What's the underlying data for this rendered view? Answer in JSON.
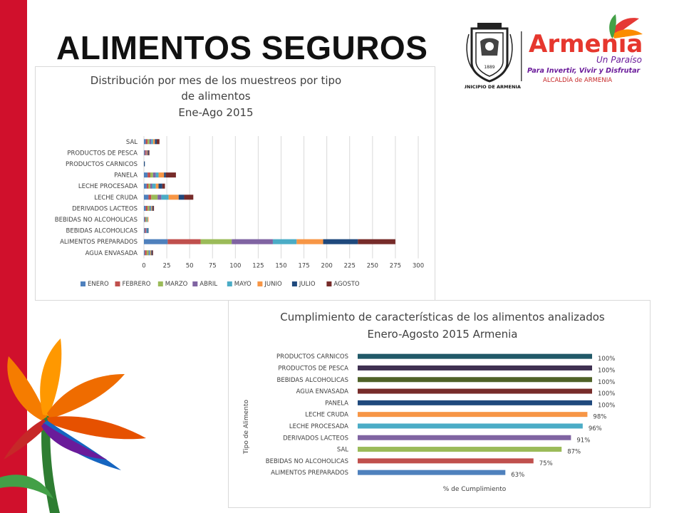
{
  "slide": {
    "title": "ALIMENTOS  SEGUROS",
    "logo": {
      "seal_text": "1889",
      "seal_caption": "MUNICIPIO DE ARMENIA",
      "brand": "Armenia",
      "tagline": "Un Paraíso",
      "slogan": "Para Invertir, Vivir y Disfrutar",
      "org": "ALCALDÍA  de  ARMENIA"
    },
    "colors": {
      "accent_red": "#d0102c"
    }
  },
  "chart_data": [
    {
      "type": "bar",
      "orientation": "horizontal",
      "stacked": true,
      "title": "Distribución por mes de los muestreos por tipo de alimentos",
      "subtitle": "Ene-Ago 2015",
      "categories": [
        "SAL",
        "PRODUCTOS DE PESCA",
        "PRODUCTOS CARNICOS",
        "PANELA",
        "LECHE PROCESADA",
        "LECHE CRUDA",
        "DERIVADOS LACTEOS",
        "BEBIDAS NO ALCOHOLICAS",
        "BEBIDAS ALCOHOLICAS",
        "ALIMENTOS PREPARADOS",
        "AGUA ENVASADA"
      ],
      "series": [
        {
          "name": "ENERO",
          "color": "#4f81bd",
          "values": [
            2,
            1,
            0,
            4,
            3,
            5,
            2,
            1,
            1,
            26,
            1
          ]
        },
        {
          "name": "FEBRERO",
          "color": "#c0504d",
          "values": [
            2,
            1,
            0,
            3,
            2,
            3,
            2,
            1,
            1,
            36,
            2
          ]
        },
        {
          "name": "MARZO",
          "color": "#9bbb59",
          "values": [
            2,
            0,
            0,
            3,
            2,
            7,
            2,
            1,
            0,
            34,
            2
          ]
        },
        {
          "name": "ABRIL",
          "color": "#8064a2",
          "values": [
            2,
            1,
            0,
            3,
            2,
            4,
            1,
            0,
            1,
            45,
            1
          ]
        },
        {
          "name": "MAYO",
          "color": "#4bacc6",
          "values": [
            2,
            0,
            0,
            3,
            4,
            8,
            1,
            1,
            1,
            26,
            1
          ]
        },
        {
          "name": "JUNIO",
          "color": "#f79646",
          "values": [
            2,
            1,
            0,
            6,
            3,
            11,
            1,
            1,
            0,
            29,
            1
          ]
        },
        {
          "name": "JULIO",
          "color": "#1f497d",
          "values": [
            2,
            1,
            1,
            2,
            4,
            6,
            1,
            0,
            1,
            38,
            1
          ]
        },
        {
          "name": "AGOSTO",
          "color": "#772c2a",
          "values": [
            3,
            1,
            0,
            11,
            3,
            10,
            1,
            0,
            0,
            41,
            1
          ]
        }
      ],
      "xlim": [
        0,
        300
      ],
      "xticks": [
        0,
        25,
        50,
        75,
        100,
        125,
        150,
        175,
        200,
        225,
        250,
        275,
        300
      ],
      "legend": "bottom",
      "grid": "vertical"
    },
    {
      "type": "bar",
      "orientation": "horizontal",
      "title": "Cumplimiento de características de los alimentos analizados",
      "subtitle": "Enero-Agosto 2015 Armenia",
      "xlabel": "% de Cumplimiento",
      "ylabel": "Tipo de Alimento",
      "xlim": [
        0,
        100
      ],
      "categories": [
        "PRODUCTOS CARNICOS",
        "PRODUCTOS DE PESCA",
        "BEBIDAS ALCOHOLICAS",
        "AGUA ENVASADA",
        "PANELA",
        "LECHE CRUDA",
        "LECHE PROCESADA",
        "DERIVADOS LACTEOS",
        "SAL",
        "BEBIDAS NO ALCOHOLICAS",
        "ALIMENTOS PREPARADOS"
      ],
      "values": [
        100,
        100,
        100,
        100,
        100,
        98,
        96,
        91,
        87,
        75,
        63
      ],
      "data_labels": [
        "100%",
        "100%",
        "100%",
        "100%",
        "100%",
        "98%",
        "96%",
        "91%",
        "87%",
        "75%",
        "63%"
      ],
      "colors": [
        "#215968",
        "#403152",
        "#4f6228",
        "#772c2a",
        "#1f497d",
        "#f79646",
        "#4bacc6",
        "#8064a2",
        "#9bbb59",
        "#c0504d",
        "#4f81bd"
      ]
    }
  ]
}
